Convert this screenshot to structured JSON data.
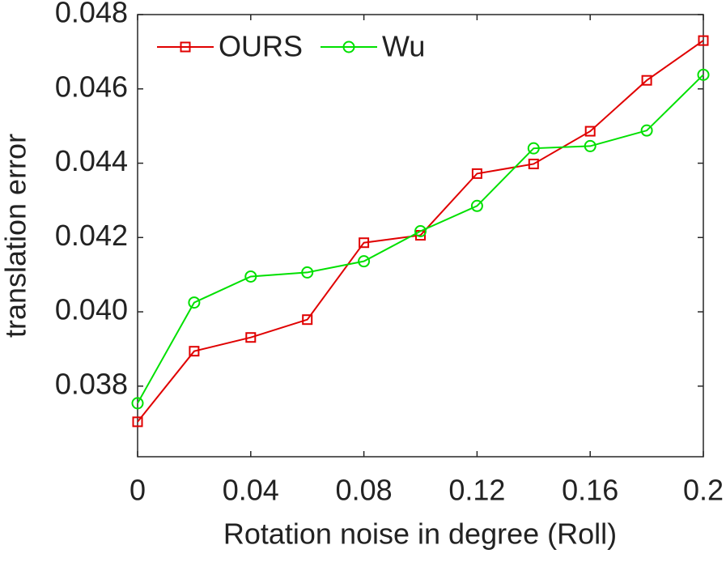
{
  "chart_data": {
    "type": "line",
    "x_label": "Rotation noise in degree (Roll)",
    "y_label": "translation error",
    "x": [
      0,
      0.02,
      0.04,
      0.06,
      0.08,
      0.1,
      0.12,
      0.14,
      0.16,
      0.18,
      0.2
    ],
    "series": [
      {
        "name": "OURS",
        "color": "#e00000",
        "marker": "square",
        "values": [
          0.03704,
          0.03894,
          0.03931,
          0.03979,
          0.04186,
          0.04206,
          0.04372,
          0.04398,
          0.04486,
          0.04623,
          0.0473
        ]
      },
      {
        "name": "Wu",
        "color": "#00e000",
        "marker": "circle",
        "values": [
          0.03754,
          0.04025,
          0.04095,
          0.04106,
          0.04136,
          0.04217,
          0.04285,
          0.0444,
          0.04446,
          0.04488,
          0.04638
        ]
      }
    ],
    "xlim": [
      0,
      0.2
    ],
    "xticks": [
      0,
      0.04,
      0.08,
      0.12,
      0.16,
      0.2
    ],
    "ylim": [
      0.0361,
      0.048
    ],
    "yticks": [
      0.038,
      {
        "value": 0.04,
        "label": "0.040"
      },
      0.042,
      0.044,
      0.046,
      0.048
    ],
    "legend": "top-left",
    "grid": false
  }
}
